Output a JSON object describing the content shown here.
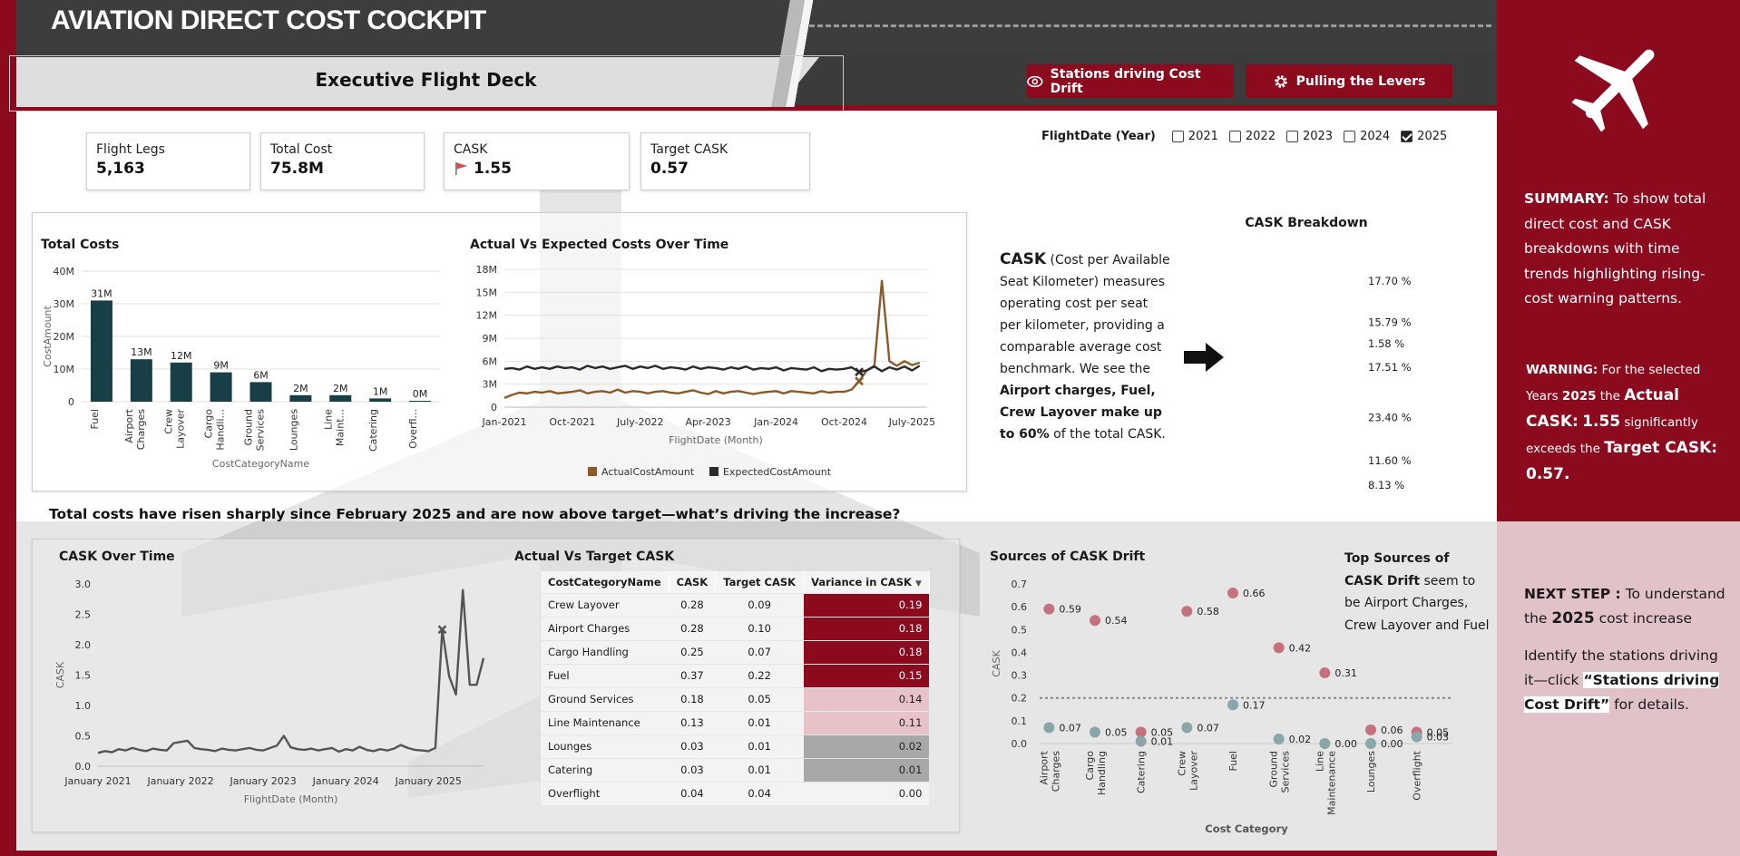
{
  "header": {
    "app_title": "AVIATION DIRECT COST COCKPIT",
    "deck_title": "Executive Flight Deck",
    "buttons": [
      {
        "label": "Stations driving Cost Drift",
        "icon": "eye-icon"
      },
      {
        "label": "Pulling the Levers",
        "icon": "gear-icon"
      }
    ]
  },
  "colors": {
    "brand": "#8c0a1e",
    "dark": "#3d3d3d",
    "actual": "#8a5a2b",
    "expected": "#2a2a2a",
    "bar": "#173f45",
    "drift_red": "#c4737e",
    "drift_teal": "#8aa6a8"
  },
  "kpis": [
    {
      "label": "Flight Legs",
      "value": "5,163"
    },
    {
      "label": "Total Cost",
      "value": "75.8M"
    },
    {
      "label": "CASK",
      "value": "1.55",
      "icon": "flag-icon"
    },
    {
      "label": "Target CASK",
      "value": "0.57"
    }
  ],
  "filter": {
    "label": "FlightDate (Year)",
    "years": [
      {
        "label": "2021",
        "checked": false
      },
      {
        "label": "2022",
        "checked": false
      },
      {
        "label": "2023",
        "checked": false
      },
      {
        "label": "2024",
        "checked": false
      },
      {
        "label": "2025",
        "checked": true
      }
    ]
  },
  "sidebar": {
    "summary_label": "SUMMARY:",
    "summary_text": " To show total direct cost and CASK breakdowns with time trends highlighting rising-cost warning patterns.",
    "warning_label": "WARNING:",
    "warning_t1": " For the selected Years ",
    "warning_year": "2025",
    "warning_t2": " the ",
    "warning_actual_label": "Actual CASK:",
    "warning_actual_value": "1.55",
    "warning_t3": " significantly exceeds the ",
    "warning_target_label": "Target CASK:",
    "warning_target_value": "0.57.",
    "next_label": "NEXT STEP :",
    "next_t1": " To understand the ",
    "next_year": "2025",
    "next_t2": " cost increase",
    "next_t3": "Identify the stations driving it—click ",
    "next_link": "“Stations driving Cost Drift”",
    "next_t4": " for details."
  },
  "insight": "Total costs have risen sharply since February 2025 and are now above target—what’s driving the increase?",
  "cask_desc": {
    "term": "CASK",
    "t1": " (Cost per Available Seat Kilometer) measures operating cost per seat per kilometer, providing a comparable average cost benchmark. We see the ",
    "bold": "Airport charges, Fuel, Crew Layover make up to 60%",
    "t2": " of the total CASK."
  },
  "drift_note": {
    "bold": "Top Sources of CASK Drift",
    "text": " seem to be Airport Charges, Crew Layover and Fuel"
  },
  "cask_table": {
    "title": "Actual Vs Target CASK",
    "headers": [
      "CostCategoryName",
      "CASK",
      "Target CASK",
      "Variance in CASK"
    ],
    "rows": [
      {
        "name": "Crew Layover",
        "cask": "0.28",
        "target": "0.09",
        "variance": "0.19",
        "level": "high"
      },
      {
        "name": "Airport Charges",
        "cask": "0.28",
        "target": "0.10",
        "variance": "0.18",
        "level": "high"
      },
      {
        "name": "Cargo Handling",
        "cask": "0.25",
        "target": "0.07",
        "variance": "0.18",
        "level": "high"
      },
      {
        "name": "Fuel",
        "cask": "0.37",
        "target": "0.22",
        "variance": "0.15",
        "level": "high"
      },
      {
        "name": "Ground Services",
        "cask": "0.18",
        "target": "0.05",
        "variance": "0.14",
        "level": "mid"
      },
      {
        "name": "Line Maintenance",
        "cask": "0.13",
        "target": "0.01",
        "variance": "0.11",
        "level": "mid"
      },
      {
        "name": "Lounges",
        "cask": "0.03",
        "target": "0.01",
        "variance": "0.02",
        "level": "low"
      },
      {
        "name": "Catering",
        "cask": "0.03",
        "target": "0.01",
        "variance": "0.01",
        "level": "low"
      },
      {
        "name": "Overflight",
        "cask": "0.04",
        "target": "0.04",
        "variance": "0.00",
        "level": "none"
      }
    ]
  },
  "chart_data": [
    {
      "id": "total_costs",
      "type": "bar",
      "title": "Total Costs",
      "xlabel": "CostCategoryName",
      "ylabel": "CostAmount",
      "ylim": [
        0,
        40
      ],
      "yticks": [
        0,
        10,
        20,
        30,
        40
      ],
      "ytick_labels": [
        "0",
        "10M",
        "20M",
        "30M",
        "40M"
      ],
      "categories": [
        [
          "Fuel"
        ],
        [
          "Airport",
          "Charges"
        ],
        [
          "Crew",
          "Layover"
        ],
        [
          "Cargo",
          "Handli..."
        ],
        [
          "Ground",
          "Services"
        ],
        [
          "Lounges"
        ],
        [
          "Line",
          "Maint..."
        ],
        [
          "Catering"
        ],
        [
          "Overfl..."
        ]
      ],
      "values": [
        31,
        13,
        12,
        9,
        6,
        2,
        2,
        1,
        0.1
      ],
      "labels": [
        "31M",
        "13M",
        "12M",
        "9M",
        "6M",
        "2M",
        "2M",
        "1M",
        "0M"
      ]
    },
    {
      "id": "actual_vs_expected",
      "type": "line",
      "title": "Actual Vs Expected Costs Over Time",
      "xlabel": "FlightDate (Month)",
      "ylim": [
        0,
        18
      ],
      "yticks": [
        0,
        3,
        6,
        9,
        12,
        15,
        18
      ],
      "ytick_labels": [
        "0",
        "3M",
        "6M",
        "9M",
        "12M",
        "15M",
        "18M"
      ],
      "x_range": [
        0,
        56
      ],
      "xticks": [
        0,
        9,
        18,
        27,
        36,
        45,
        54
      ],
      "xtick_labels": [
        "Jan-2021",
        "Oct-2021",
        "July-2022",
        "Apr-2023",
        "Jan-2024",
        "Oct-2024",
        "July-2025"
      ],
      "legend": "bottom",
      "series": [
        {
          "name": "ActualCostAmount",
          "values": [
            1.2,
            1.6,
            1.9,
            1.8,
            2.0,
            1.9,
            2.1,
            1.8,
            1.9,
            2.0,
            2.2,
            1.8,
            2.0,
            2.1,
            1.9,
            2.3,
            1.9,
            2.1,
            2.0,
            1.8,
            2.0,
            2.1,
            1.9,
            1.8,
            2.0,
            2.2,
            1.9,
            1.7,
            2.1,
            1.8,
            2.0,
            2.1,
            1.9,
            1.7,
            1.9,
            2.0,
            2.1,
            1.8,
            2.1,
            2.0,
            1.9,
            1.8,
            2.1,
            1.9,
            2.0,
            2.0,
            2.3,
            3.4,
            4.8,
            5.4,
            16.5,
            6.0,
            5.4,
            6.0,
            5.5,
            5.8
          ]
        },
        {
          "name": "ExpectedCostAmount",
          "values": [
            5.0,
            5.1,
            4.9,
            5.3,
            5.0,
            5.2,
            5.0,
            5.3,
            5.1,
            5.2,
            4.9,
            5.4,
            5.1,
            5.3,
            5.0,
            5.2,
            5.4,
            5.0,
            5.3,
            5.1,
            5.4,
            5.0,
            5.2,
            5.1,
            4.9,
            5.3,
            5.0,
            5.2,
            5.1,
            4.9,
            5.2,
            5.0,
            5.3,
            4.9,
            5.1,
            5.0,
            5.2,
            4.8,
            5.1,
            5.0,
            4.9,
            5.2,
            4.7,
            5.0,
            4.9,
            5.0,
            5.2,
            4.6,
            4.8,
            5.3,
            4.7,
            5.2,
            4.9,
            5.3,
            4.8,
            5.4
          ]
        }
      ],
      "markers": [
        {
          "series": "ActualCostAmount",
          "index": 47
        },
        {
          "series": "ExpectedCostAmount",
          "index": 47
        }
      ]
    },
    {
      "id": "cask_over_time",
      "type": "line",
      "title": "CASK Over Time",
      "xlabel": "FlightDate (Month)",
      "ylabel": "CASK",
      "ylim": [
        0,
        3
      ],
      "yticks": [
        0,
        0.5,
        1,
        1.5,
        2,
        2.5,
        3
      ],
      "ytick_labels": [
        "0.0",
        "0.5",
        "1.0",
        "1.5",
        "2.0",
        "2.5",
        "3.0"
      ],
      "x_range": [
        0,
        56
      ],
      "xticks": [
        0,
        12,
        24,
        36,
        48
      ],
      "xtick_labels": [
        "January 2021",
        "January 2022",
        "January 2023",
        "January 2024",
        "January 2025"
      ],
      "series": [
        {
          "name": "CASK",
          "values": [
            0.22,
            0.25,
            0.23,
            0.28,
            0.26,
            0.3,
            0.27,
            0.25,
            0.29,
            0.27,
            0.26,
            0.38,
            0.4,
            0.42,
            0.3,
            0.28,
            0.27,
            0.25,
            0.29,
            0.27,
            0.26,
            0.28,
            0.3,
            0.27,
            0.26,
            0.3,
            0.34,
            0.5,
            0.31,
            0.28,
            0.27,
            0.29,
            0.26,
            0.28,
            0.3,
            0.24,
            0.28,
            0.26,
            0.32,
            0.27,
            0.25,
            0.28,
            0.26,
            0.29,
            0.35,
            0.3,
            0.27,
            0.26,
            0.25,
            0.3,
            2.25,
            1.48,
            1.18,
            2.9,
            1.34,
            1.34,
            1.78
          ]
        }
      ],
      "markers": [
        {
          "series": "CASK",
          "index": 50
        }
      ]
    },
    {
      "id": "cask_breakdown",
      "type": "pie",
      "title": "CASK Breakdown",
      "labels": [
        "17.70 %",
        "15.79 %",
        "1.58 %",
        "17.51 %",
        "23.40 %",
        "11.60 %",
        "8.13 %"
      ],
      "values": [
        17.7,
        15.79,
        1.58,
        17.51,
        23.4,
        11.6,
        8.13
      ]
    },
    {
      "id": "cask_drift",
      "type": "scatter",
      "title": "Sources of CASK Drift",
      "xlabel": "Cost Category",
      "ylabel": "CASK",
      "ylim": [
        0,
        0.7
      ],
      "yticks": [
        0,
        0.1,
        0.2,
        0.3,
        0.4,
        0.5,
        0.6,
        0.7
      ],
      "ytick_labels": [
        "0.0",
        "0.1",
        "0.2",
        "0.3",
        "0.4",
        "0.5",
        "0.6",
        "0.7"
      ],
      "target_line": 0.2,
      "categories": [
        [
          "Airport",
          "Charges"
        ],
        [
          "Cargo",
          "Handling"
        ],
        [
          "Catering"
        ],
        [
          "Crew",
          "Layover"
        ],
        [
          "Fuel"
        ],
        [
          "Ground",
          "Services"
        ],
        [
          "Line",
          "Maintenance"
        ],
        [
          "Lounges"
        ],
        [
          "Overflight"
        ]
      ],
      "series": [
        {
          "name": "Actual",
          "values": [
            0.59,
            0.54,
            0.05,
            0.58,
            0.66,
            0.42,
            0.31,
            0.06,
            0.05
          ],
          "labels": [
            "0.59",
            "0.54",
            "0.05",
            "0.58",
            "0.66",
            "0.42",
            "0.31",
            "0.06",
            "0.05"
          ]
        },
        {
          "name": "Target",
          "values": [
            0.07,
            0.05,
            0.01,
            0.07,
            0.17,
            0.02,
            0.0,
            0.0,
            0.03
          ],
          "labels": [
            "0.07",
            "0.05",
            "0.01",
            "0.07",
            "0.17",
            "0.02",
            "0.00",
            "0.00",
            "0.03"
          ]
        }
      ]
    }
  ]
}
